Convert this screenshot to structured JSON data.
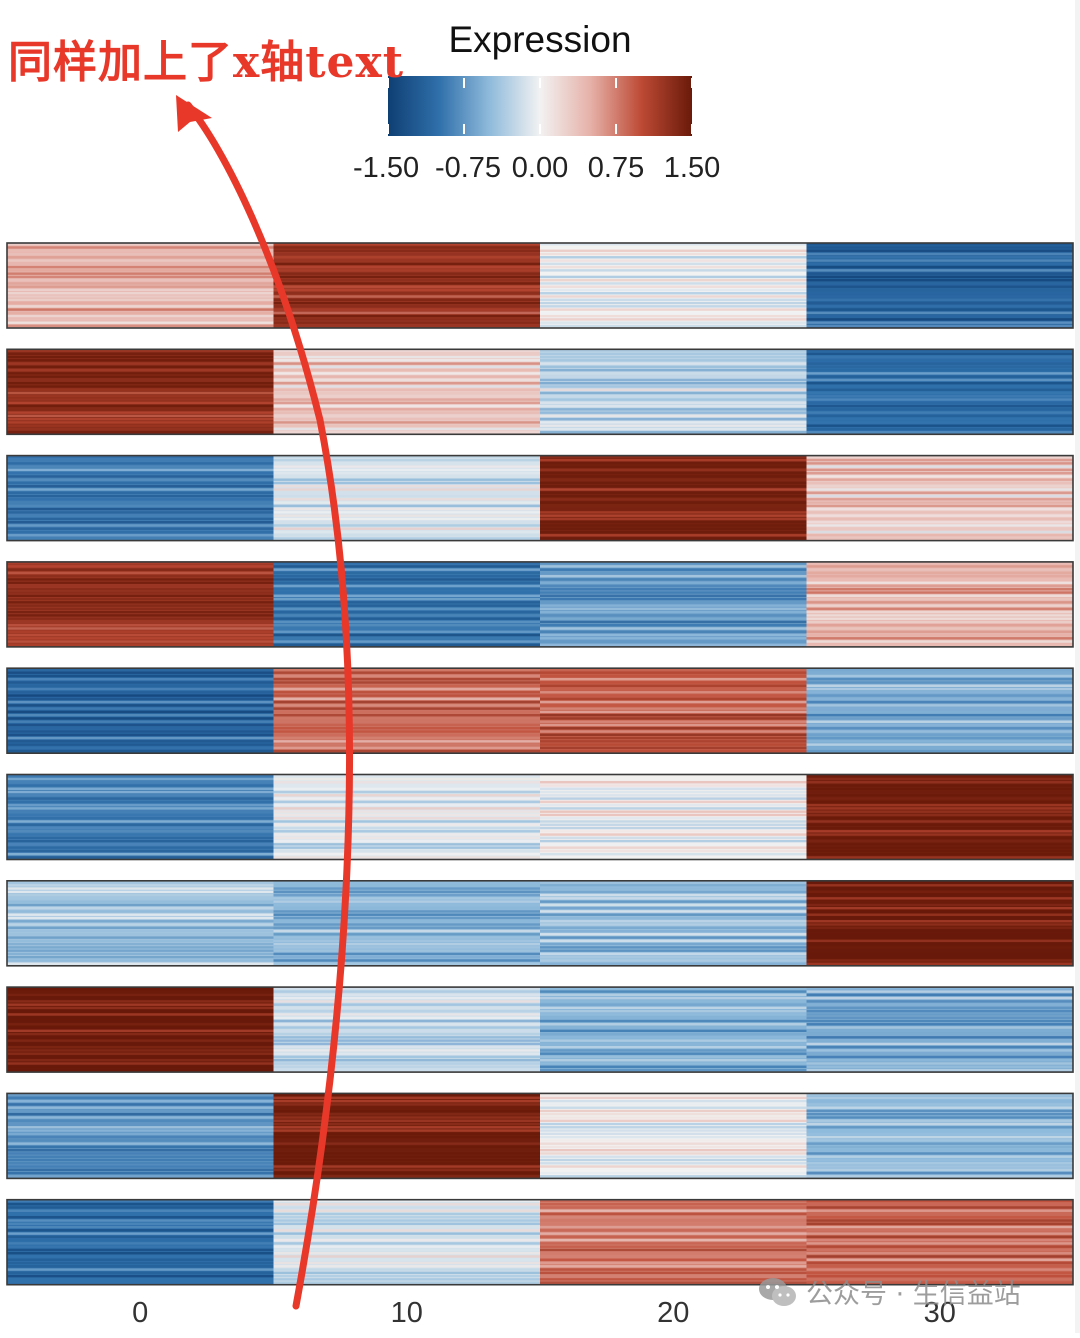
{
  "chart_data": {
    "type": "heatmap",
    "legend": {
      "title": "Expression",
      "ticks": [
        -1.5,
        -0.75,
        0,
        0.75,
        1.5
      ],
      "tick_labels": [
        "-1.50",
        "-0.75",
        "0.00",
        "0.75",
        "1.50"
      ],
      "range": [
        -1.5,
        1.5
      ],
      "colors": [
        "#0f3f73",
        "#2f6faa",
        "#8fbadb",
        "#f2f2f2",
        "#e6b1a8",
        "#bd4a35",
        "#6a1a0a"
      ],
      "placement": "top"
    },
    "x_tick_labels": [
      "0",
      "10",
      "20",
      "30"
    ],
    "rows": 10,
    "cells": [
      [
        0.45,
        1.2,
        0.0,
        -1.1
      ],
      [
        1.3,
        0.3,
        -0.25,
        -1.0
      ],
      [
        -0.9,
        -0.15,
        1.4,
        0.3
      ],
      [
        1.2,
        -0.95,
        -0.7,
        0.45
      ],
      [
        -1.05,
        0.8,
        0.9,
        -0.6
      ],
      [
        -0.9,
        -0.1,
        0.02,
        1.45
      ],
      [
        -0.4,
        -0.5,
        -0.45,
        1.5
      ],
      [
        1.5,
        -0.2,
        -0.55,
        -0.6
      ],
      [
        -0.75,
        1.45,
        0.0,
        -0.5
      ],
      [
        -1.0,
        -0.15,
        0.75,
        0.85
      ]
    ]
  },
  "annotation": {
    "text": "同样加上了x轴text"
  },
  "watermark": {
    "text": "公众号 · 生信益站"
  },
  "colors": {
    "annotation": "#e8382a",
    "border": "#3a3a3a"
  }
}
